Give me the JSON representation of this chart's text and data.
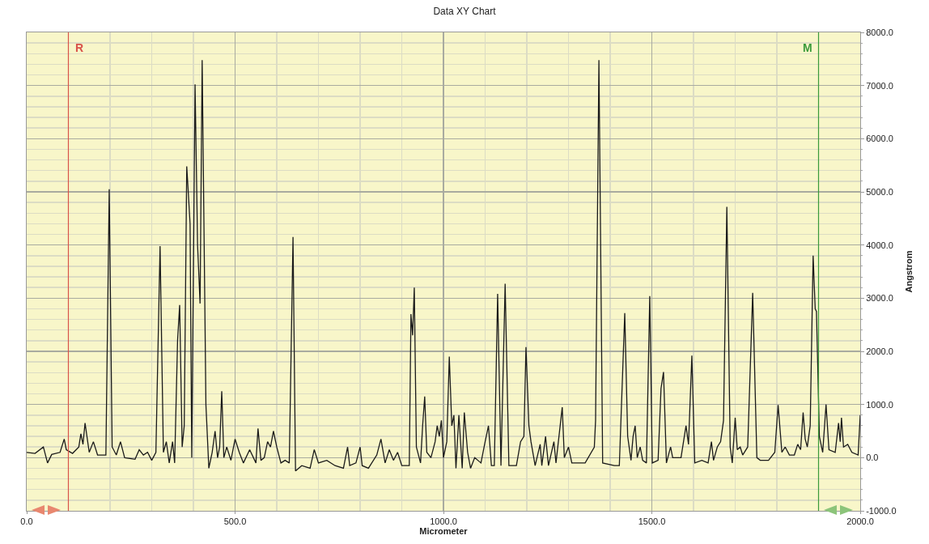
{
  "chart_data": {
    "type": "line",
    "title": "Data XY Chart",
    "xlabel": "Micrometer",
    "ylabel": "Angstrom",
    "x": [
      0,
      20,
      40,
      50,
      60,
      80,
      90,
      95,
      110,
      125,
      130,
      135,
      140,
      150,
      160,
      170,
      190,
      198,
      205,
      215,
      225,
      235,
      260,
      270,
      280,
      290,
      300,
      310,
      320,
      328,
      335,
      342,
      350,
      355,
      362,
      367,
      373,
      378,
      384,
      388,
      392,
      396,
      404,
      410,
      416,
      421,
      430,
      437,
      445,
      452,
      458,
      463,
      468,
      473,
      480,
      490,
      500,
      510,
      520,
      535,
      550,
      555,
      562,
      570,
      578,
      585,
      592,
      600,
      610,
      620,
      630,
      639,
      645,
      660,
      680,
      690,
      700,
      720,
      740,
      760,
      770,
      775,
      790,
      800,
      805,
      820,
      840,
      850,
      860,
      870,
      880,
      890,
      900,
      918,
      922,
      926,
      930,
      935,
      945,
      950,
      955,
      960,
      970,
      980,
      985,
      990,
      995,
      1000,
      1008,
      1014,
      1020,
      1025,
      1030,
      1037,
      1045,
      1050,
      1058,
      1065,
      1075,
      1090,
      1100,
      1108,
      1115,
      1122,
      1130,
      1138,
      1148,
      1157,
      1175,
      1185,
      1193,
      1198,
      1205,
      1210,
      1220,
      1232,
      1236,
      1245,
      1252,
      1265,
      1270,
      1285,
      1290,
      1300,
      1308,
      1340,
      1362,
      1365,
      1373,
      1382,
      1410,
      1422,
      1435,
      1442,
      1450,
      1455,
      1460,
      1465,
      1472,
      1478,
      1487,
      1495,
      1501,
      1515,
      1522,
      1528,
      1535,
      1545,
      1550,
      1570,
      1582,
      1588,
      1596,
      1603,
      1620,
      1635,
      1643,
      1648,
      1657,
      1665,
      1672,
      1680,
      1688,
      1693,
      1700,
      1705,
      1712,
      1718,
      1730,
      1742,
      1752,
      1760,
      1780,
      1795,
      1803,
      1812,
      1820,
      1830,
      1842,
      1850,
      1857,
      1863,
      1868,
      1873,
      1880,
      1887,
      1892,
      1895,
      1902,
      1910,
      1918,
      1925,
      1940,
      1948,
      1952,
      1955,
      1960,
      1970,
      1980,
      1995,
      2000
    ],
    "series": [
      {
        "color": "#1a1a1a",
        "values": [
          100,
          80,
          200,
          -100,
          60,
          100,
          350,
          150,
          80,
          200,
          450,
          250,
          650,
          100,
          300,
          50,
          50,
          5050,
          200,
          50,
          300,
          0,
          -30,
          150,
          50,
          100,
          -50,
          100,
          3980,
          100,
          300,
          -100,
          300,
          -100,
          2200,
          2870,
          200,
          600,
          5480,
          4950,
          4400,
          0,
          7020,
          4000,
          2900,
          7480,
          1000,
          -200,
          100,
          500,
          0,
          200,
          1250,
          0,
          200,
          -50,
          350,
          100,
          -100,
          150,
          -100,
          550,
          -50,
          0,
          300,
          200,
          500,
          200,
          -100,
          -50,
          -100,
          4150,
          -250,
          -150,
          -200,
          150,
          -100,
          -50,
          -150,
          -200,
          200,
          -150,
          -100,
          200,
          -150,
          -200,
          50,
          350,
          -100,
          150,
          -50,
          100,
          -150,
          -150,
          2700,
          2300,
          3200,
          200,
          -100,
          600,
          1150,
          100,
          0,
          300,
          600,
          400,
          700,
          0,
          300,
          1900,
          600,
          800,
          -200,
          800,
          -200,
          850,
          100,
          -200,
          0,
          -100,
          300,
          600,
          -150,
          -150,
          3080,
          -150,
          3270,
          -150,
          -150,
          300,
          400,
          2080,
          600,
          300,
          -150,
          250,
          -150,
          400,
          -150,
          300,
          -100,
          950,
          0,
          200,
          -100,
          -100,
          200,
          700,
          7480,
          -100,
          -150,
          -150,
          2720,
          400,
          -50,
          400,
          600,
          0,
          200,
          -50,
          -100,
          3040,
          -100,
          -50,
          1300,
          1610,
          -100,
          200,
          0,
          0,
          600,
          250,
          1920,
          -100,
          -50,
          -100,
          300,
          -50,
          200,
          300,
          700,
          4720,
          200,
          -100,
          750,
          150,
          200,
          50,
          200,
          3100,
          0,
          -50,
          -50,
          100,
          990,
          100,
          200,
          50,
          50,
          250,
          150,
          850,
          350,
          200,
          600,
          3800,
          2800,
          2750,
          400,
          100,
          1000,
          150,
          100,
          650,
          300,
          750,
          200,
          250,
          100,
          50,
          800
        ]
      }
    ],
    "xlim": [
      0,
      2000
    ],
    "xticks": [
      {
        "value": 0,
        "label": "0.0"
      },
      {
        "value": 500,
        "label": "500.0"
      },
      {
        "value": 1000,
        "label": "1000.0"
      },
      {
        "value": 1500,
        "label": "1500.0"
      },
      {
        "value": 2000,
        "label": "2000.0"
      }
    ],
    "ylim": [
      -1000,
      8000
    ],
    "yticks": [
      {
        "value": -1000,
        "label": "-1000.0"
      },
      {
        "value": 0,
        "label": "0.0"
      },
      {
        "value": 1000,
        "label": "1000.0"
      },
      {
        "value": 2000,
        "label": "2000.0"
      },
      {
        "value": 3000,
        "label": "3000.0"
      },
      {
        "value": 4000,
        "label": "4000.0"
      },
      {
        "value": 5000,
        "label": "5000.0"
      },
      {
        "value": 6000,
        "label": "6000.0"
      },
      {
        "value": 7000,
        "label": "7000.0"
      },
      {
        "value": 8000,
        "label": "8000.0"
      }
    ],
    "ref_lines": [
      {
        "axis": "x",
        "value": 100,
        "label": "R",
        "color": "#d9534a"
      },
      {
        "axis": "x",
        "value": 1900,
        "label": "M",
        "color": "#3a9a3a"
      }
    ],
    "grid": true,
    "marker": "none",
    "line_style": "solid"
  }
}
